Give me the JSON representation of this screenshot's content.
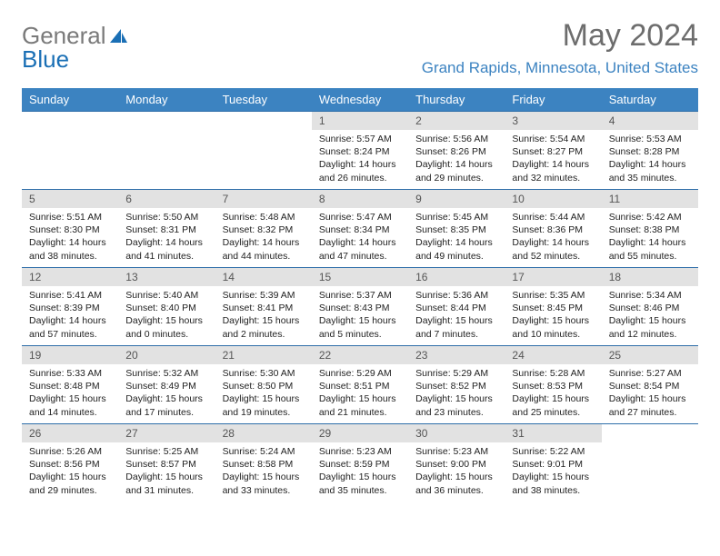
{
  "brand": {
    "word1": "General",
    "word2": "Blue"
  },
  "title": "May 2024",
  "location": "Grand Rapids, Minnesota, United States",
  "colors": {
    "header_bg": "#3c83c1",
    "header_text": "#ffffff",
    "week_border": "#2e6ea9",
    "daynum_bg": "#e2e2e2",
    "brand_gray": "#7a7a7a",
    "brand_blue": "#1a6fb5",
    "title_gray": "#6d6d6d"
  },
  "dows": [
    "Sunday",
    "Monday",
    "Tuesday",
    "Wednesday",
    "Thursday",
    "Friday",
    "Saturday"
  ],
  "weeks": [
    [
      null,
      null,
      null,
      {
        "n": "1",
        "sr": "5:57 AM",
        "ss": "8:24 PM",
        "dl": "14 hours and 26 minutes."
      },
      {
        "n": "2",
        "sr": "5:56 AM",
        "ss": "8:26 PM",
        "dl": "14 hours and 29 minutes."
      },
      {
        "n": "3",
        "sr": "5:54 AM",
        "ss": "8:27 PM",
        "dl": "14 hours and 32 minutes."
      },
      {
        "n": "4",
        "sr": "5:53 AM",
        "ss": "8:28 PM",
        "dl": "14 hours and 35 minutes."
      }
    ],
    [
      {
        "n": "5",
        "sr": "5:51 AM",
        "ss": "8:30 PM",
        "dl": "14 hours and 38 minutes."
      },
      {
        "n": "6",
        "sr": "5:50 AM",
        "ss": "8:31 PM",
        "dl": "14 hours and 41 minutes."
      },
      {
        "n": "7",
        "sr": "5:48 AM",
        "ss": "8:32 PM",
        "dl": "14 hours and 44 minutes."
      },
      {
        "n": "8",
        "sr": "5:47 AM",
        "ss": "8:34 PM",
        "dl": "14 hours and 47 minutes."
      },
      {
        "n": "9",
        "sr": "5:45 AM",
        "ss": "8:35 PM",
        "dl": "14 hours and 49 minutes."
      },
      {
        "n": "10",
        "sr": "5:44 AM",
        "ss": "8:36 PM",
        "dl": "14 hours and 52 minutes."
      },
      {
        "n": "11",
        "sr": "5:42 AM",
        "ss": "8:38 PM",
        "dl": "14 hours and 55 minutes."
      }
    ],
    [
      {
        "n": "12",
        "sr": "5:41 AM",
        "ss": "8:39 PM",
        "dl": "14 hours and 57 minutes."
      },
      {
        "n": "13",
        "sr": "5:40 AM",
        "ss": "8:40 PM",
        "dl": "15 hours and 0 minutes."
      },
      {
        "n": "14",
        "sr": "5:39 AM",
        "ss": "8:41 PM",
        "dl": "15 hours and 2 minutes."
      },
      {
        "n": "15",
        "sr": "5:37 AM",
        "ss": "8:43 PM",
        "dl": "15 hours and 5 minutes."
      },
      {
        "n": "16",
        "sr": "5:36 AM",
        "ss": "8:44 PM",
        "dl": "15 hours and 7 minutes."
      },
      {
        "n": "17",
        "sr": "5:35 AM",
        "ss": "8:45 PM",
        "dl": "15 hours and 10 minutes."
      },
      {
        "n": "18",
        "sr": "5:34 AM",
        "ss": "8:46 PM",
        "dl": "15 hours and 12 minutes."
      }
    ],
    [
      {
        "n": "19",
        "sr": "5:33 AM",
        "ss": "8:48 PM",
        "dl": "15 hours and 14 minutes."
      },
      {
        "n": "20",
        "sr": "5:32 AM",
        "ss": "8:49 PM",
        "dl": "15 hours and 17 minutes."
      },
      {
        "n": "21",
        "sr": "5:30 AM",
        "ss": "8:50 PM",
        "dl": "15 hours and 19 minutes."
      },
      {
        "n": "22",
        "sr": "5:29 AM",
        "ss": "8:51 PM",
        "dl": "15 hours and 21 minutes."
      },
      {
        "n": "23",
        "sr": "5:29 AM",
        "ss": "8:52 PM",
        "dl": "15 hours and 23 minutes."
      },
      {
        "n": "24",
        "sr": "5:28 AM",
        "ss": "8:53 PM",
        "dl": "15 hours and 25 minutes."
      },
      {
        "n": "25",
        "sr": "5:27 AM",
        "ss": "8:54 PM",
        "dl": "15 hours and 27 minutes."
      }
    ],
    [
      {
        "n": "26",
        "sr": "5:26 AM",
        "ss": "8:56 PM",
        "dl": "15 hours and 29 minutes."
      },
      {
        "n": "27",
        "sr": "5:25 AM",
        "ss": "8:57 PM",
        "dl": "15 hours and 31 minutes."
      },
      {
        "n": "28",
        "sr": "5:24 AM",
        "ss": "8:58 PM",
        "dl": "15 hours and 33 minutes."
      },
      {
        "n": "29",
        "sr": "5:23 AM",
        "ss": "8:59 PM",
        "dl": "15 hours and 35 minutes."
      },
      {
        "n": "30",
        "sr": "5:23 AM",
        "ss": "9:00 PM",
        "dl": "15 hours and 36 minutes."
      },
      {
        "n": "31",
        "sr": "5:22 AM",
        "ss": "9:01 PM",
        "dl": "15 hours and 38 minutes."
      },
      null
    ]
  ],
  "labels": {
    "sunrise": "Sunrise: ",
    "sunset": "Sunset: ",
    "daylight": "Daylight: "
  }
}
